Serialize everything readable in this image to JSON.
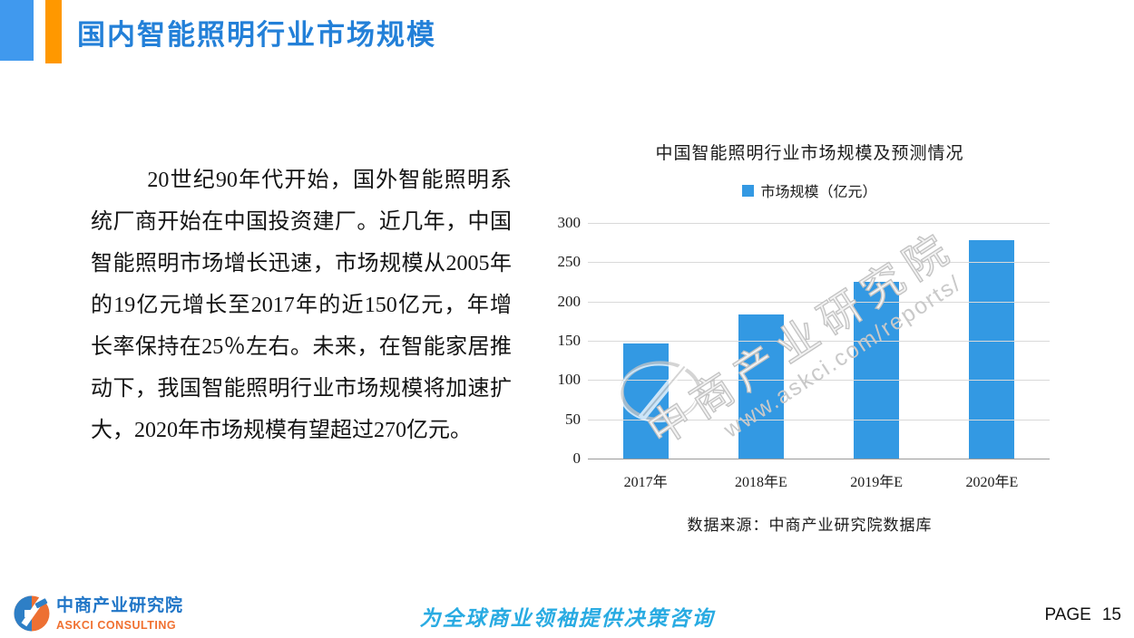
{
  "header": {
    "title": "国内智能照明行业市场规模",
    "accent_blue": "#4099EE",
    "accent_orange": "#FF9800",
    "title_color": "#2380D8"
  },
  "body": {
    "paragraph": "20世纪90年代开始，国外智能照明系统厂商开始在中国投资建厂。近几年，中国智能照明市场增长迅速，市场规模从2005年的19亿元增长至2017年的近150亿元，年增长率保持在25％左右。未来，在智能家居推动下，我国智能照明行业市场规模将加速扩大，2020年市场规模有望超过270亿元。"
  },
  "chart_data": {
    "type": "bar",
    "title": "中国智能照明行业市场规模及预测情况",
    "legend": [
      "市场规模（亿元）"
    ],
    "legend_position": "top",
    "categories": [
      "2017年",
      "2018年E",
      "2019年E",
      "2020年E"
    ],
    "values": [
      147,
      183,
      225,
      278
    ],
    "ylim": [
      0,
      300
    ],
    "yticks": [
      0,
      50,
      100,
      150,
      200,
      250,
      300
    ],
    "grid": true,
    "bar_color": "#3399E3",
    "gridline_color": "#d9d9d9",
    "source": "数据来源：中商产业研究院数据库"
  },
  "watermark": {
    "line1": "中商产业研究院",
    "line2": "www.askci.com/reports/"
  },
  "footer": {
    "logo_name": "中商产业研究院",
    "logo_sub": "ASKCI CONSULTING",
    "slogan": "为全球商业领袖提供决策咨询",
    "page_label": "PAGE",
    "page_number": "15"
  }
}
